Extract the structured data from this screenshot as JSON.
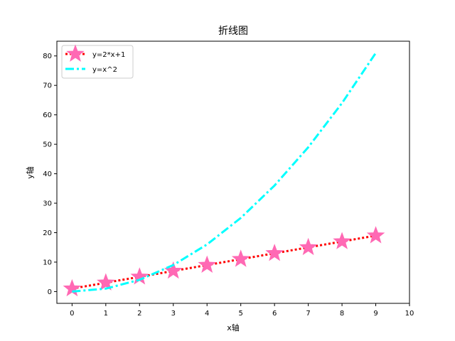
{
  "chart_data": {
    "type": "line",
    "title": "折线图",
    "xlabel": "x轴",
    "ylabel": "y轴",
    "xlim": [
      -0.45,
      10
    ],
    "ylim": [
      -4,
      85
    ],
    "xticks": [
      0,
      1,
      2,
      3,
      4,
      5,
      6,
      7,
      8,
      9,
      10
    ],
    "yticks": [
      0,
      10,
      20,
      30,
      40,
      50,
      60,
      70,
      80
    ],
    "grid": false,
    "legend_position": "upper-left",
    "x": [
      0,
      1,
      2,
      3,
      4,
      5,
      6,
      7,
      8,
      9
    ],
    "series": [
      {
        "name": "y=2*x+1",
        "values": [
          1,
          3,
          5,
          7,
          9,
          11,
          13,
          15,
          17,
          19
        ],
        "line_color": "#ff0000",
        "line_style": "dotted",
        "marker": "star",
        "marker_color": "#ff69b4"
      },
      {
        "name": "y=x^2",
        "values": [
          0,
          1,
          4,
          9,
          16,
          25,
          36,
          49,
          64,
          81
        ],
        "line_color": "#00ffff",
        "line_style": "dashdot",
        "marker": "none"
      }
    ]
  }
}
